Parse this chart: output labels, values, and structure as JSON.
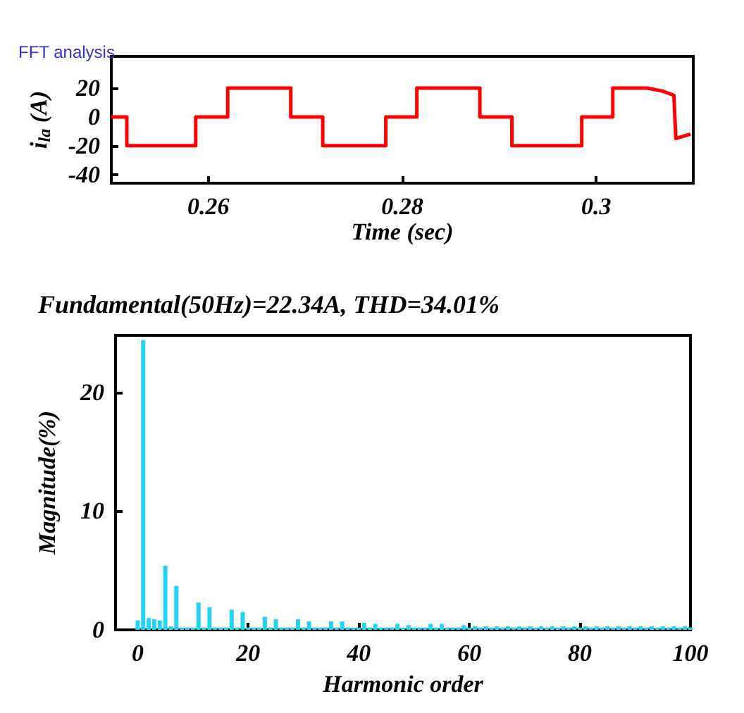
{
  "chart_data": [
    {
      "type": "line",
      "title": "FFT analysis",
      "xlabel": "Time (sec)",
      "ylabel": "i$_{la}$ (A)",
      "marker": "none",
      "xlim": [
        0.25,
        0.31
      ],
      "ylim": [
        -46,
        42
      ],
      "xticks": [
        0.26,
        0.28,
        0.3
      ],
      "yticks": [
        -40,
        -20,
        0,
        20
      ],
      "series": [
        {
          "color": "#ff0000",
          "x": [
            0.25,
            0.2516,
            0.2516,
            0.2587,
            0.2587,
            0.262,
            0.262,
            0.2685,
            0.2685,
            0.2718,
            0.2718,
            0.2783,
            0.2783,
            0.2815,
            0.2815,
            0.288,
            0.288,
            0.2913,
            0.2913,
            0.2985,
            0.2985,
            0.3017,
            0.3017,
            0.3052,
            0.3068,
            0.308,
            0.3082,
            0.3097
          ],
          "values": [
            0,
            0,
            -20,
            -20,
            0,
            0,
            20,
            20,
            0,
            0,
            -20,
            -20,
            0,
            0,
            20,
            20,
            0,
            0,
            -20,
            -20,
            0,
            0,
            20,
            20,
            18,
            15,
            -15,
            -12
          ]
        }
      ]
    },
    {
      "type": "bar",
      "title": "Fundamental(50Hz)=22.34A, THD=34.01%",
      "xlabel": "Harmonic order",
      "ylabel": "Magnitude(%)",
      "color": "#22d3f2",
      "xlim": [
        -4,
        100
      ],
      "ylim": [
        0,
        24.8
      ],
      "xticks": [
        0,
        20,
        40,
        60,
        80,
        100
      ],
      "yticks": [
        0,
        10,
        20
      ],
      "x": [
        0,
        1,
        2,
        3,
        4,
        5,
        6,
        7,
        8,
        9,
        10,
        11,
        12,
        13,
        14,
        15,
        16,
        17,
        18,
        19,
        20,
        21,
        22,
        23,
        24,
        25,
        26,
        27,
        28,
        29,
        30,
        31,
        32,
        33,
        34,
        35,
        36,
        37,
        38,
        39,
        40,
        41,
        42,
        43,
        44,
        45,
        46,
        47,
        48,
        49,
        50,
        51,
        52,
        53,
        54,
        55,
        56,
        57,
        58,
        59,
        60,
        61,
        62,
        63,
        64,
        65,
        66,
        67,
        68,
        69,
        70,
        71,
        72,
        73,
        74,
        75,
        76,
        77,
        78,
        79,
        80,
        81,
        82,
        83,
        84,
        85,
        86,
        87,
        88,
        89,
        90,
        91,
        92,
        93,
        94,
        95,
        96,
        97,
        98,
        99,
        100
      ],
      "values": [
        0.8,
        24.4,
        1.0,
        0.9,
        0.8,
        5.4,
        0.3,
        3.7,
        0.2,
        0.2,
        0.2,
        2.3,
        0.2,
        1.9,
        0.2,
        0.2,
        0.2,
        1.7,
        0.2,
        1.5,
        0.2,
        0.2,
        0.2,
        1.1,
        0.2,
        0.9,
        0.2,
        0.2,
        0.2,
        0.9,
        0.2,
        0.7,
        0.2,
        0.2,
        0.2,
        0.7,
        0.2,
        0.7,
        0.2,
        0.2,
        0.2,
        0.6,
        0.2,
        0.5,
        0.2,
        0.2,
        0.2,
        0.5,
        0.2,
        0.4,
        0.2,
        0.2,
        0.2,
        0.5,
        0.2,
        0.5,
        0.2,
        0.2,
        0.2,
        0.4,
        0.2,
        0.3,
        0.2,
        0.3,
        0.2,
        0.3,
        0.2,
        0.3,
        0.2,
        0.3,
        0.2,
        0.3,
        0.2,
        0.3,
        0.2,
        0.3,
        0.2,
        0.3,
        0.2,
        0.3,
        0.2,
        0.3,
        0.2,
        0.3,
        0.2,
        0.3,
        0.2,
        0.3,
        0.2,
        0.3,
        0.2,
        0.3,
        0.2,
        0.3,
        0.2,
        0.3,
        0.2,
        0.3,
        0.2,
        0.3,
        0.2
      ]
    }
  ]
}
